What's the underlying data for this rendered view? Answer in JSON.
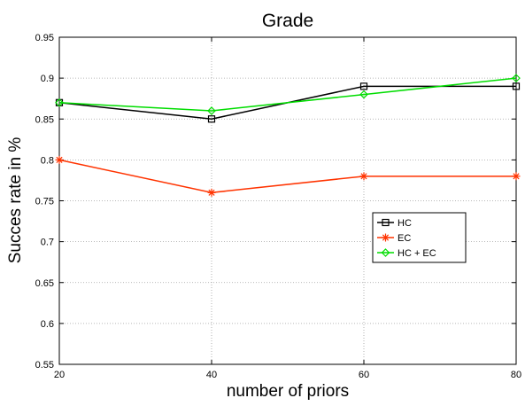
{
  "chart_data": {
    "type": "line",
    "title": "Grade",
    "xlabel": "number of priors",
    "ylabel": "Succes rate in %",
    "x": [
      20,
      40,
      60,
      80
    ],
    "xlim": [
      20,
      80
    ],
    "ylim": [
      0.55,
      0.95
    ],
    "xticks": [
      20,
      40,
      60,
      80
    ],
    "yticks": [
      0.55,
      0.6,
      0.65,
      0.7,
      0.75,
      0.8,
      0.85,
      0.9,
      0.95
    ],
    "xtick_labels": [
      "20",
      "40",
      "60",
      "80"
    ],
    "ytick_labels": [
      "0.55",
      "0.6",
      "0.65",
      "0.7",
      "0.75",
      "0.8",
      "0.85",
      "0.9",
      "0.95"
    ],
    "grid": true,
    "legend_position": "right-center",
    "series": [
      {
        "name": "HC",
        "values": [
          0.87,
          0.85,
          0.89,
          0.89
        ],
        "color": "#000000",
        "marker": "square"
      },
      {
        "name": "EC",
        "values": [
          0.8,
          0.76,
          0.78,
          0.78
        ],
        "color": "#ff3300",
        "marker": "asterisk"
      },
      {
        "name": "HC + EC",
        "values": [
          0.87,
          0.86,
          0.88,
          0.9
        ],
        "color": "#00dd00",
        "marker": "diamond"
      }
    ]
  }
}
